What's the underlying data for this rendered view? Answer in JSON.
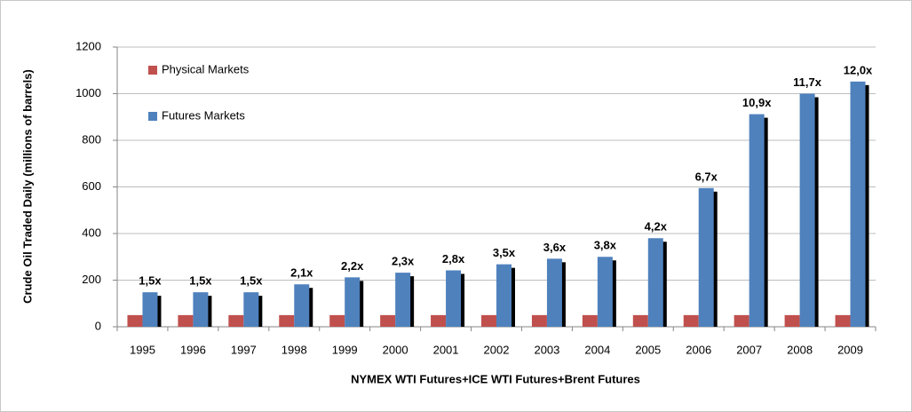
{
  "chart_data": {
    "type": "bar",
    "y_label": "Crude Oil Traded Daily (millions of barrels)",
    "x_label": "NYMEX  WTI Futures+ICE WTI Futures+Brent Futures",
    "categories": [
      "1995",
      "1996",
      "1997",
      "1998",
      "1999",
      "2000",
      "2001",
      "2002",
      "2003",
      "2004",
      "2005",
      "2006",
      "2007",
      "2008",
      "2009"
    ],
    "series": [
      {
        "name": "Physical Markets",
        "color": "#c0504d",
        "values": [
          50,
          50,
          50,
          50,
          50,
          50,
          50,
          50,
          50,
          50,
          50,
          50,
          50,
          50,
          50
        ]
      },
      {
        "name": "Futures Markets",
        "color": "#4f81bd",
        "values": [
          148,
          148,
          148,
          182,
          212,
          232,
          242,
          268,
          292,
          300,
          380,
          595,
          912,
          1000,
          1052
        ]
      }
    ],
    "annotations": [
      "1,5x",
      "1,5x",
      "1,5x",
      "2,1x",
      "2,2x",
      "2,3x",
      "2,8x",
      "3,5x",
      "3,6x",
      "3,8x",
      "4,2x",
      "6,7x",
      "10,9x",
      "11,7x",
      "12,0x"
    ],
    "ylim": [
      0,
      1200
    ],
    "yticks": [
      0,
      200,
      400,
      600,
      800,
      1000,
      1200
    ],
    "grid": true,
    "legend": "top-left"
  }
}
